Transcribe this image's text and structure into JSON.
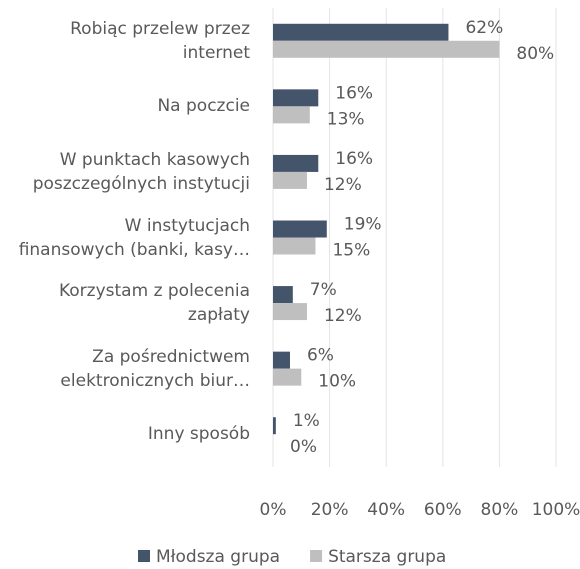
{
  "chart_data": {
    "type": "hbar",
    "categories": [
      "Robiąc przelew przez\ninternet",
      "Na poczcie",
      "W punktach kasowych\nposzczególnych instytucji",
      "W instytucjach\nfinansowych (banki, kasy…",
      "Korzystam z polecenia\nzapłaty",
      "Za pośrednictwem\nelektronicznych biur…",
      "Inny sposób"
    ],
    "series": [
      {
        "name": "Młodsza grupa",
        "color": "#44546a",
        "values": [
          62,
          16,
          16,
          19,
          7,
          6,
          1
        ],
        "value_labels": [
          "62%",
          "16%",
          "16%",
          "19%",
          "7%",
          "6%",
          "1%"
        ]
      },
      {
        "name": "Starsza grupa",
        "color": "#bfbfbf",
        "values": [
          80,
          13,
          12,
          15,
          12,
          10,
          0
        ],
        "value_labels": [
          "80%",
          "13%",
          "12%",
          "15%",
          "12%",
          "10%",
          "0%"
        ]
      }
    ],
    "xlim": [
      0,
      100
    ],
    "xticks": [
      {
        "value": 0,
        "label": "0%"
      },
      {
        "value": 20,
        "label": "20%"
      },
      {
        "value": 40,
        "label": "40%"
      },
      {
        "value": 60,
        "label": "60%"
      },
      {
        "value": 80,
        "label": "80%"
      },
      {
        "value": 100,
        "label": "100%"
      }
    ],
    "grid": true
  }
}
